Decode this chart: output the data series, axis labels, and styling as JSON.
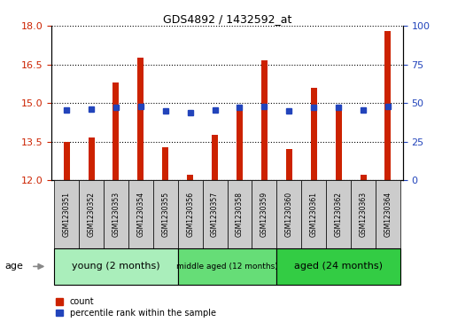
{
  "title": "GDS4892 / 1432592_at",
  "samples": [
    "GSM1230351",
    "GSM1230352",
    "GSM1230353",
    "GSM1230354",
    "GSM1230355",
    "GSM1230356",
    "GSM1230357",
    "GSM1230358",
    "GSM1230359",
    "GSM1230360",
    "GSM1230361",
    "GSM1230362",
    "GSM1230363",
    "GSM1230364"
  ],
  "bar_values": [
    13.5,
    13.65,
    15.8,
    16.75,
    13.3,
    12.2,
    13.75,
    14.9,
    16.65,
    13.2,
    15.6,
    14.75,
    12.2,
    17.8
  ],
  "bar_base": 12.0,
  "dot_values": [
    14.72,
    14.78,
    14.82,
    14.88,
    14.68,
    14.64,
    14.72,
    14.82,
    14.88,
    14.68,
    14.82,
    14.82,
    14.72,
    14.88
  ],
  "ylim_left": [
    12,
    18
  ],
  "ylim_right": [
    0,
    100
  ],
  "yticks_left": [
    12,
    13.5,
    15,
    16.5,
    18
  ],
  "yticks_right": [
    0,
    25,
    50,
    75,
    100
  ],
  "bar_color": "#cc2200",
  "dot_color": "#2244bb",
  "grid_color": "#000000",
  "tick_label_color_left": "#cc2200",
  "tick_label_color_right": "#2244bb",
  "sample_box_color": "#cccccc",
  "groups": [
    {
      "label": "young (2 months)",
      "start": 0,
      "end": 5,
      "color": "#aaeebb",
      "fontsize": 8
    },
    {
      "label": "middle aged (12 months)",
      "start": 5,
      "end": 9,
      "color": "#66dd77",
      "fontsize": 6.5
    },
    {
      "label": "aged (24 months)",
      "start": 9,
      "end": 14,
      "color": "#33cc44",
      "fontsize": 8
    }
  ],
  "age_label": "age",
  "legend_count": "count",
  "legend_percentile": "percentile rank within the sample",
  "bar_width": 0.25
}
